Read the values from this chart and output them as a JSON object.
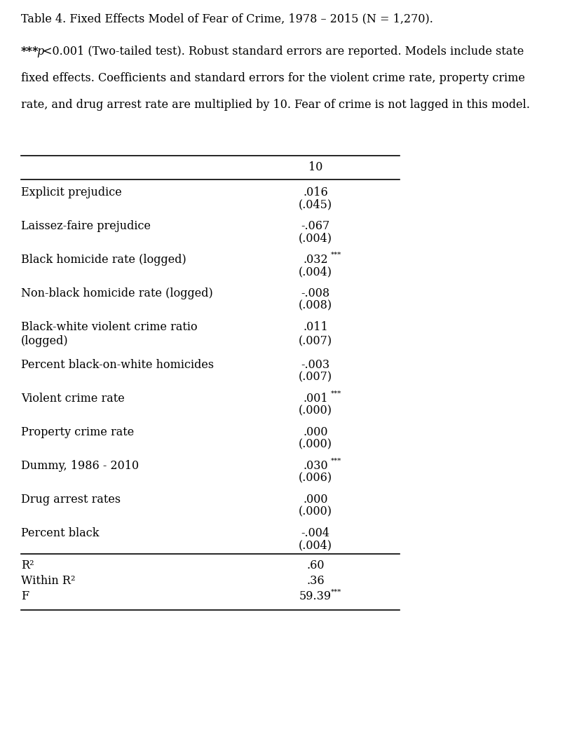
{
  "title": "Table 4. Fixed Effects Model of Fear of Crime, 1978 – 2015 (N = 1,270).",
  "footnote_lines": [
    "***p<0.001 (Two-tailed test). Robust standard errors are reported. Models include state",
    "fixed effects. Coefficients and standard errors for the violent crime rate, property crime",
    "rate, and drug arrest rate are multiplied by 10. Fear of crime is not lagged in this model."
  ],
  "column_header": "10",
  "rows": [
    {
      "label": "Explicit prejudice",
      "coef": ".016",
      "se": "(.045)",
      "coef_stars": ""
    },
    {
      "label": "Laissez-faire prejudice",
      "coef": "-.067",
      "se": "(.004)",
      "coef_stars": ""
    },
    {
      "label": "Black homicide rate (logged)",
      "coef": ".032",
      "se": "(.004)",
      "coef_stars": "***"
    },
    {
      "label": "Non-black homicide rate (logged)",
      "coef": "-.008",
      "se": "(.008)",
      "coef_stars": ""
    },
    {
      "label": "Black-white violent crime ratio",
      "coef": ".011",
      "se": "(.007)",
      "coef_stars": "",
      "label2": "(logged)"
    },
    {
      "label": "Percent black-on-white homicides",
      "coef": "-.003",
      "se": "(.007)",
      "coef_stars": ""
    },
    {
      "label": "Violent crime rate",
      "coef": ".001",
      "se": "(.000)",
      "coef_stars": "***"
    },
    {
      "label": "Property crime rate",
      "coef": ".000",
      "se": "(.000)",
      "coef_stars": ""
    },
    {
      "label": "Dummy, 1986 - 2010",
      "coef": ".030",
      "se": "(.006)",
      "coef_stars": "***"
    },
    {
      "label": "Drug arrest rates",
      "coef": ".000",
      "se": "(.000)",
      "coef_stars": ""
    },
    {
      "label": "Percent black",
      "coef": "-.004",
      "se": "(.004)",
      "coef_stars": ""
    }
  ],
  "stats": [
    {
      "label": "R²",
      "value": ".60",
      "stars": ""
    },
    {
      "label": "Within R²",
      "value": ".36",
      "stars": ""
    },
    {
      "label": "F",
      "value": "59.39",
      "stars": "***"
    }
  ],
  "font_family": "DejaVu Serif",
  "font_size": 11.5
}
